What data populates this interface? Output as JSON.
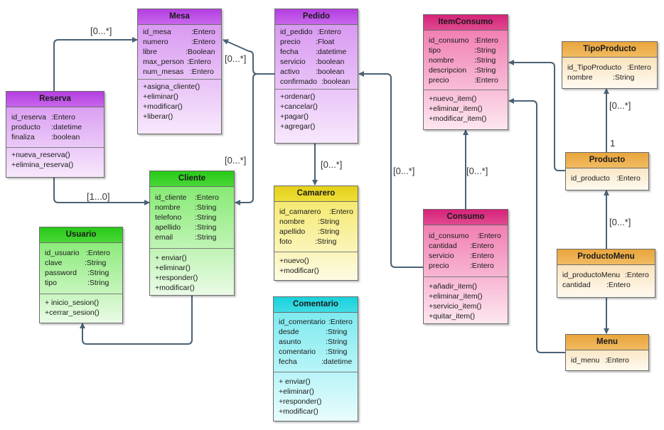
{
  "classes": {
    "mesa": {
      "name": "Mesa",
      "attributes": [
        {
          "name": "id_mesa",
          "type": ":Entero"
        },
        {
          "name": "numero",
          "type": ":Entero"
        },
        {
          "name": "libre",
          "type": ":Boolean"
        },
        {
          "name": "max_person",
          "type": ":Entero"
        },
        {
          "name": "num_mesas",
          "type": ":Entero"
        }
      ],
      "methods": [
        "+asigna_cliente()",
        "+eliminar()",
        "+modificar()",
        "+liberar()"
      ]
    },
    "pedido": {
      "name": "Pedido",
      "attributes": [
        {
          "name": "id_pedido",
          "type": ":Entero"
        },
        {
          "name": "precio",
          "type": ":Float"
        },
        {
          "name": "fecha",
          "type": ":datetime"
        },
        {
          "name": "servicio",
          "type": ":boolean"
        },
        {
          "name": "activo",
          "type": ":boolean"
        },
        {
          "name": "confirmado",
          "type": ":boolean"
        }
      ],
      "methods": [
        "+ordenar()",
        "+cancelar()",
        "+pagar()",
        "+agregar()"
      ]
    },
    "reserva": {
      "name": "Reserva",
      "attributes": [
        {
          "name": "id_reserva",
          "type": ":Entero"
        },
        {
          "name": "producto",
          "type": ":datetime"
        },
        {
          "name": "finaliza",
          "type": ":boolean"
        }
      ],
      "methods": [
        "+nueva_reserva()",
        "+elimina_reserva()"
      ]
    },
    "cliente": {
      "name": "Cliente",
      "attributes": [
        {
          "name": "id_cliente",
          "type": ":Entero"
        },
        {
          "name": "nombre",
          "type": ":String"
        },
        {
          "name": "telefono",
          "type": ":String"
        },
        {
          "name": "apellido",
          "type": ":String"
        },
        {
          "name": "email",
          "type": ":String"
        }
      ],
      "methods": [
        "+ enviar()",
        "+eliminar()",
        "+responder()",
        "+modificar()"
      ]
    },
    "usuario": {
      "name": "Usuario",
      "attributes": [
        {
          "name": "id_usuario",
          "type": ":Entero"
        },
        {
          "name": "clave",
          "type": ":String"
        },
        {
          "name": "password",
          "type": ":String"
        },
        {
          "name": "tipo",
          "type": ":String"
        }
      ],
      "methods": [
        "+ inicio_sesion()",
        "+cerrar_sesion()"
      ]
    },
    "camarero": {
      "name": "Camarero",
      "attributes": [
        {
          "name": "id_camarero",
          "type": ":Entero"
        },
        {
          "name": "nombre",
          "type": ":String"
        },
        {
          "name": "apellido",
          "type": ":String"
        },
        {
          "name": "foto",
          "type": ":String"
        }
      ],
      "methods": [
        "+nuevo()",
        "+modificar()"
      ]
    },
    "comentario": {
      "name": "Comentario",
      "attributes": [
        {
          "name": "id_comentario",
          "type": ":Entero"
        },
        {
          "name": "desde",
          "type": ":String"
        },
        {
          "name": "asunto",
          "type": ":String"
        },
        {
          "name": "comentario",
          "type": ":String"
        },
        {
          "name": "fecha",
          "type": ":datetime"
        }
      ],
      "methods": [
        "+ enviar()",
        "+eliminar()",
        "+responder()",
        "+modificar()"
      ]
    },
    "itemconsumo": {
      "name": "ItemConsumo",
      "attributes": [
        {
          "name": "id_consumo",
          "type": ":Entero"
        },
        {
          "name": "tipo",
          "type": ":String"
        },
        {
          "name": "nombre",
          "type": ":String"
        },
        {
          "name": "descripcion",
          "type": ":String"
        },
        {
          "name": "precio",
          "type": ":Entero"
        }
      ],
      "methods": [
        "+nuevo_item()",
        "+eliminar_item()",
        "+modificar_item()"
      ]
    },
    "consumo": {
      "name": "Consumo",
      "attributes": [
        {
          "name": "id_consumo",
          "type": ":Entero"
        },
        {
          "name": "cantidad",
          "type": ":Entero"
        },
        {
          "name": "servicio",
          "type": ":Entero"
        },
        {
          "name": "precio",
          "type": ":Entero"
        }
      ],
      "methods": [
        "+añadir_item()",
        "+eliminar_item()",
        "+servicio_item()",
        "+quitar_item()"
      ]
    },
    "tipoproducto": {
      "name": "TipoProducto",
      "attributes": [
        {
          "name": "id_TipoProducto",
          "type": ":Entero"
        },
        {
          "name": "nombre",
          "type": ":String"
        }
      ],
      "methods": []
    },
    "producto": {
      "name": "Producto",
      "attributes": [
        {
          "name": "id_producto",
          "type": ":Entero"
        }
      ],
      "methods": []
    },
    "productomenu": {
      "name": "ProductoMenu",
      "attributes": [
        {
          "name": "id_productoMenu",
          "type": ":Entero"
        },
        {
          "name": "cantidad",
          "type": ":Entero"
        }
      ],
      "methods": []
    },
    "menu": {
      "name": "Menu",
      "attributes": [
        {
          "name": "id_menu",
          "type": ":Entero"
        }
      ],
      "methods": []
    }
  },
  "multiplicities": {
    "reserva_mesa": "[0...*]",
    "pedido_mesa": "[0...*]",
    "pedido_cliente": "[0...*]",
    "reserva_cliente": "[1...0]",
    "pedido_camarero": "[0...*]",
    "consumo_pedido": "[0...*]",
    "consumo_itemconsumo": "[0...*]",
    "producto_tipoproducto_many": "[0...*]",
    "producto_tipoproducto_one": "1",
    "productomenu_producto": "[0...*]"
  },
  "colors": {
    "violet": "#c866ec",
    "green": "#27c917",
    "yellow": "#e3d01b",
    "cyan": "#19d1db",
    "pink": "#d6237a",
    "orange": "#e9a53c",
    "connector": "#4a6275"
  }
}
